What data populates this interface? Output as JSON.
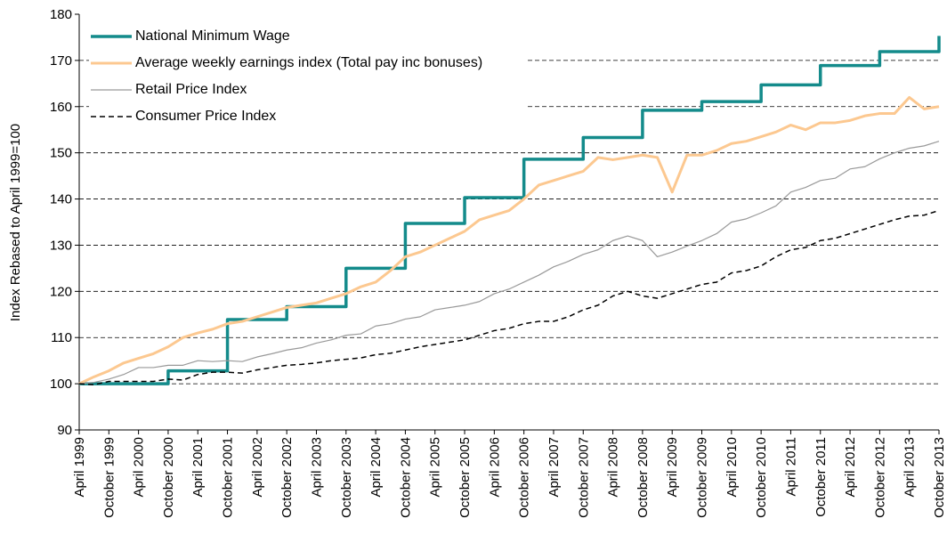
{
  "chart_data": {
    "type": "line",
    "y_label": "Index Rebased to April 1999=100",
    "categories": [
      "April 1999",
      null,
      "October 1999",
      null,
      "April 2000",
      null,
      "October 2000",
      null,
      "April 2001",
      null,
      "October 2001",
      null,
      "April 2002",
      null,
      "October 2002",
      null,
      "April 2003",
      null,
      "October 2003",
      null,
      "April 2004",
      null,
      "October 2004",
      null,
      "April 2005",
      null,
      "October 2005",
      null,
      "April 2006",
      null,
      "October 2006",
      null,
      "April 2007",
      null,
      "October 2007",
      null,
      "April 2008",
      null,
      "October 2008",
      null,
      "April 2009",
      null,
      "October 2009",
      null,
      "April 2010",
      null,
      "October 2010",
      null,
      "April 2011",
      null,
      "October 2011",
      null,
      "April 2012",
      null,
      "October 2012",
      null,
      "April 2013",
      null,
      "October 2013"
    ],
    "ylim": [
      90,
      180
    ],
    "yticks": [
      90,
      100,
      110,
      120,
      130,
      140,
      150,
      160,
      170,
      180
    ],
    "grid": true,
    "legend": "upper-left",
    "series": [
      {
        "name": "National Minimum Wage",
        "color": "#148b8b",
        "style": "step",
        "values": [
          100,
          100,
          100,
          100,
          100,
          100,
          102.8,
          102.8,
          102.8,
          102.8,
          113.9,
          113.9,
          113.9,
          113.9,
          116.7,
          116.7,
          116.7,
          116.7,
          125,
          125,
          125,
          125,
          134.7,
          134.7,
          134.7,
          134.7,
          140.3,
          140.3,
          140.3,
          140.3,
          148.6,
          148.6,
          148.6,
          148.6,
          153.3,
          153.3,
          153.3,
          153.3,
          159.2,
          159.2,
          159.2,
          159.2,
          161.1,
          161.1,
          161.1,
          161.1,
          164.7,
          164.7,
          164.7,
          164.7,
          168.9,
          168.9,
          168.9,
          168.9,
          171.9,
          171.9,
          171.9,
          171.9,
          175.3
        ]
      },
      {
        "name": "Average weekly earnings index (Total pay inc bonuses)",
        "color": "#fcc890",
        "style": "solid",
        "values": [
          100,
          101.5,
          102.8,
          104.5,
          105.5,
          106.5,
          108,
          110,
          111,
          111.8,
          113,
          113.5,
          114.5,
          115.5,
          116.5,
          117,
          117.5,
          118.5,
          119.5,
          121,
          122,
          124.5,
          127.5,
          128.5,
          130,
          131.5,
          133,
          135.5,
          136.5,
          137.5,
          140,
          143,
          144,
          145,
          146,
          149,
          148.5,
          149,
          149.5,
          149,
          141.5,
          149.5,
          149.5,
          150.5,
          152,
          152.5,
          153.5,
          154.5,
          156,
          155,
          156.5,
          156.5,
          157,
          158,
          158.5,
          158.5,
          162,
          159.5,
          160
        ]
      },
      {
        "name": "Retail Price Index",
        "color": "#999999",
        "style": "thin",
        "values": [
          100,
          100.3,
          101,
          102,
          103.5,
          103.5,
          104,
          104,
          105,
          104.8,
          105,
          104.8,
          105.8,
          106.5,
          107.3,
          107.8,
          108.8,
          109.5,
          110.5,
          110.8,
          112.5,
          113,
          114,
          114.5,
          116,
          116.5,
          117,
          117.8,
          119.5,
          120.5,
          122,
          123.5,
          125.3,
          126.5,
          128,
          129,
          131,
          132,
          131,
          127.5,
          128.5,
          129.8,
          131,
          132.5,
          135,
          135.7,
          137,
          138.5,
          141.5,
          142.5,
          144,
          144.5,
          146.5,
          147,
          148.7,
          150,
          151,
          151.5,
          152.5
        ]
      },
      {
        "name": "Consumer Price Index",
        "color": "#000000",
        "style": "dash",
        "values": [
          100,
          99.8,
          100.5,
          100.5,
          100.5,
          100.5,
          101,
          100.8,
          102,
          102.5,
          102.5,
          102.3,
          103,
          103.5,
          104,
          104.2,
          104.5,
          105,
          105.3,
          105.6,
          106.3,
          106.6,
          107.3,
          108,
          108.5,
          109,
          109.5,
          110.5,
          111.5,
          112,
          113,
          113.5,
          113.5,
          114.5,
          116,
          117,
          119,
          120,
          119,
          118.5,
          119.5,
          120.5,
          121.5,
          122,
          124,
          124.5,
          125.5,
          127.5,
          129,
          129.5,
          131,
          131.5,
          132.5,
          133.5,
          134.5,
          135.5,
          136.3,
          136.5,
          137.5
        ]
      }
    ]
  }
}
